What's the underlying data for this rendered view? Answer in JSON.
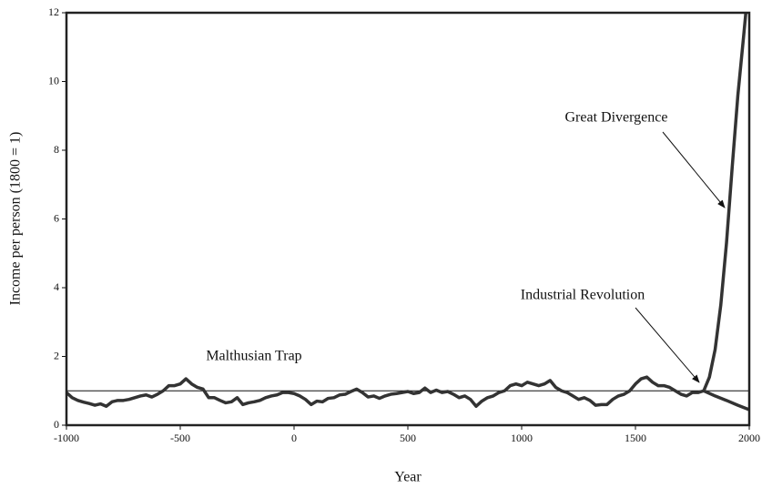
{
  "chart_data": {
    "type": "line",
    "xlabel": "Year",
    "ylabel": "Income per person (1800 = 1)",
    "xlim": [
      -1000,
      2000
    ],
    "xticks": [
      -1000,
      -500,
      0,
      500,
      1000,
      1500,
      2000
    ],
    "ylim": [
      0,
      12
    ],
    "yticks": [
      0,
      2,
      4,
      6,
      8,
      10,
      12
    ],
    "reference_line": 1,
    "annotations": [
      "Malthusian Trap",
      "Industrial Revolution",
      "Great Divergence"
    ],
    "series": [
      {
        "color": "#333333",
        "x": [
          -1000,
          -975,
          -950,
          -925,
          -900,
          -875,
          -850,
          -825,
          -800,
          -775,
          -750,
          -725,
          -700,
          -675,
          -650,
          -625,
          -600,
          -575,
          -550,
          -525,
          -500,
          -475,
          -450,
          -425,
          -400,
          -375,
          -350,
          -325,
          -300,
          -275,
          -250,
          -225,
          -200,
          -175,
          -150,
          -125,
          -100,
          -75,
          -50,
          -25,
          0,
          25,
          50,
          75,
          100,
          125,
          150,
          175,
          200,
          225,
          250,
          275,
          300,
          325,
          350,
          375,
          400,
          425,
          450,
          475,
          500,
          525,
          550,
          575,
          600,
          625,
          650,
          675,
          700,
          725,
          750,
          775,
          800,
          825,
          850,
          875,
          900,
          925,
          950,
          975,
          1000,
          1025,
          1050,
          1075,
          1100,
          1125,
          1150,
          1175,
          1200,
          1225,
          1250,
          1275,
          1300,
          1325,
          1350,
          1375,
          1400,
          1425,
          1450,
          1475,
          1500,
          1525,
          1550,
          1575,
          1600,
          1625,
          1650,
          1675,
          1700,
          1725,
          1750,
          1775,
          1800
        ],
        "values": [
          0.95,
          0.8,
          0.72,
          0.67,
          0.63,
          0.58,
          0.62,
          0.55,
          0.68,
          0.72,
          0.72,
          0.75,
          0.8,
          0.85,
          0.88,
          0.82,
          0.9,
          1.0,
          1.15,
          1.15,
          1.2,
          1.35,
          1.2,
          1.1,
          1.05,
          0.8,
          0.8,
          0.72,
          0.65,
          0.68,
          0.8,
          0.6,
          0.65,
          0.68,
          0.72,
          0.8,
          0.85,
          0.88,
          0.95,
          0.95,
          0.92,
          0.85,
          0.75,
          0.6,
          0.7,
          0.68,
          0.78,
          0.8,
          0.88,
          0.9,
          0.98,
          1.05,
          0.95,
          0.82,
          0.85,
          0.78,
          0.85,
          0.9,
          0.92,
          0.95,
          0.98,
          0.92,
          0.95,
          1.08,
          0.95,
          1.02,
          0.95,
          0.98,
          0.9,
          0.8,
          0.85,
          0.75,
          0.55,
          0.7,
          0.8,
          0.85,
          0.95,
          1.0,
          1.15,
          1.2,
          1.15,
          1.25,
          1.2,
          1.15,
          1.2,
          1.3,
          1.1,
          1.0,
          0.95,
          0.85,
          0.75,
          0.8,
          0.72,
          0.58,
          0.6,
          0.6,
          0.75,
          0.85,
          0.9,
          1.0,
          1.2,
          1.35,
          1.4,
          1.25,
          1.15,
          1.15,
          1.1,
          1.0,
          0.9,
          0.85,
          0.95,
          0.95,
          1.0
        ]
      },
      {
        "color": "#333333",
        "x": [
          1800,
          1825,
          1850,
          1875,
          1900,
          1925,
          1950,
          1975,
          1985
        ],
        "values": [
          1.0,
          1.4,
          2.2,
          3.5,
          5.3,
          7.5,
          9.6,
          11.3,
          12
        ]
      },
      {
        "color": "#333333",
        "x": [
          1800,
          1850,
          1900,
          1950,
          2000
        ],
        "values": [
          1.0,
          0.85,
          0.72,
          0.58,
          0.45
        ]
      }
    ]
  }
}
